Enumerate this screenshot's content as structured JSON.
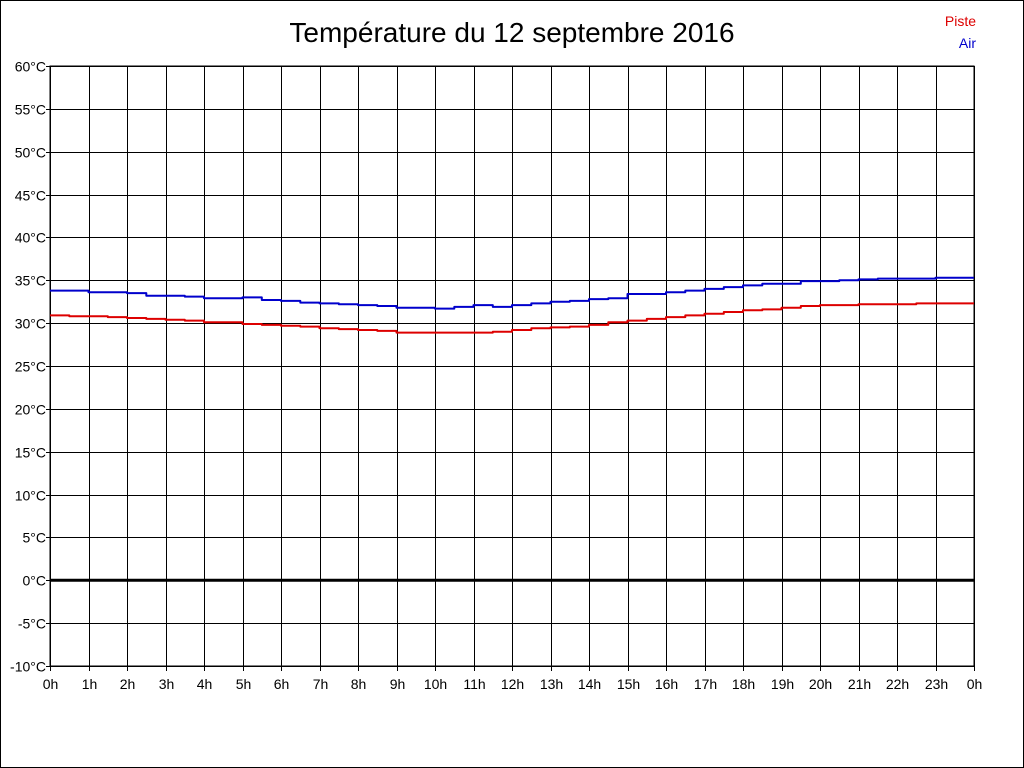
{
  "chart_data": {
    "type": "line",
    "title": "Température du 12 septembre 2016",
    "xlabel": "",
    "ylabel": "",
    "x_ticks": [
      "0h",
      "1h",
      "2h",
      "3h",
      "4h",
      "5h",
      "6h",
      "7h",
      "8h",
      "9h",
      "10h",
      "11h",
      "12h",
      "13h",
      "14h",
      "15h",
      "16h",
      "17h",
      "18h",
      "19h",
      "20h",
      "21h",
      "22h",
      "23h",
      "0h"
    ],
    "y_ticks": [
      "60°C",
      "55°C",
      "50°C",
      "45°C",
      "40°C",
      "35°C",
      "30°C",
      "25°C",
      "20°C",
      "15°C",
      "10°C",
      "5°C",
      "0°C",
      "-5°C",
      "-10°C"
    ],
    "xlim": [
      0,
      24
    ],
    "ylim": [
      -10,
      60
    ],
    "grid": true,
    "legend_position": "top-right",
    "series": [
      {
        "name": "Piste",
        "color": "#dd0000",
        "x": [
          0,
          0.5,
          1,
          1.5,
          2,
          2.5,
          3,
          3.5,
          4,
          4.5,
          5,
          5.5,
          6,
          6.5,
          7,
          7.5,
          8,
          8.5,
          9,
          9.5,
          10,
          10.5,
          11,
          11.5,
          12,
          12.5,
          13,
          13.5,
          14,
          14.5,
          15,
          15.5,
          16,
          16.5,
          17,
          17.5,
          18,
          18.5,
          19,
          19.5,
          20,
          20.5,
          21,
          21.5,
          22,
          22.5,
          23,
          23.5
        ],
        "values": [
          30.9,
          30.8,
          30.8,
          30.7,
          30.6,
          30.5,
          30.4,
          30.3,
          30.1,
          30.1,
          29.9,
          29.8,
          29.7,
          29.6,
          29.4,
          29.3,
          29.2,
          29.1,
          28.9,
          28.9,
          28.9,
          28.9,
          28.9,
          29.0,
          29.2,
          29.4,
          29.5,
          29.6,
          29.8,
          30.1,
          30.3,
          30.5,
          30.7,
          30.9,
          31.1,
          31.3,
          31.5,
          31.6,
          31.8,
          32.0,
          32.1,
          32.1,
          32.2,
          32.2,
          32.2,
          32.3,
          32.3,
          32.3
        ]
      },
      {
        "name": "Air",
        "color": "#0000cc",
        "x": [
          0,
          0.5,
          1,
          1.5,
          2,
          2.5,
          3,
          3.5,
          4,
          4.5,
          5,
          5.5,
          6,
          6.5,
          7,
          7.5,
          8,
          8.5,
          9,
          9.5,
          10,
          10.5,
          11,
          11.5,
          12,
          12.5,
          13,
          13.5,
          14,
          14.5,
          15,
          15.5,
          16,
          16.5,
          17,
          17.5,
          18,
          18.5,
          19,
          19.5,
          20,
          20.5,
          21,
          21.5,
          22,
          22.5,
          23,
          23.5
        ],
        "values": [
          33.8,
          33.8,
          33.6,
          33.6,
          33.5,
          33.2,
          33.2,
          33.1,
          32.9,
          32.9,
          33.0,
          32.7,
          32.6,
          32.4,
          32.3,
          32.2,
          32.1,
          32.0,
          31.8,
          31.8,
          31.7,
          31.9,
          32.1,
          31.9,
          32.1,
          32.3,
          32.5,
          32.6,
          32.8,
          32.9,
          33.4,
          33.4,
          33.6,
          33.8,
          34.0,
          34.2,
          34.4,
          34.6,
          34.6,
          34.9,
          34.9,
          35.0,
          35.1,
          35.2,
          35.2,
          35.2,
          35.3,
          35.3
        ]
      }
    ]
  }
}
